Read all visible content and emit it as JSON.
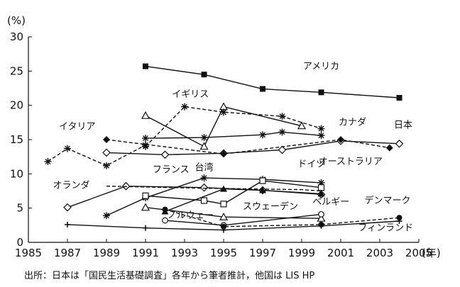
{
  "chart_data": {
    "type": "line",
    "yunit": "(%)",
    "xunit": "(年)",
    "xlim": [
      1985,
      2005
    ],
    "ylim": [
      0,
      30
    ],
    "xticks": [
      1985,
      1987,
      1989,
      1991,
      1993,
      1995,
      1997,
      1999,
      2001,
      2003,
      2005
    ],
    "yticks": [
      0,
      5,
      10,
      15,
      20,
      25,
      30
    ],
    "grid": false,
    "legend": "inline labels",
    "source": "出所：日本は「国民生活基礎調査」各年から筆者推計，他国は LIS HP",
    "series": [
      {
        "name": "アメリカ",
        "marker": "filled-square",
        "dash": "solid",
        "x": [
          1991,
          1994,
          1997,
          2000,
          2004
        ],
        "y": [
          25.7,
          24.5,
          22.4,
          21.9,
          21.1
        ],
        "label_at": [
          2000,
          25.3
        ]
      },
      {
        "name": "イギリス",
        "marker": "triangle-open",
        "dash": "solid",
        "x": [
          1991,
          1994,
          1995,
          1999
        ],
        "y": [
          18.5,
          14.0,
          19.8,
          17.0
        ],
        "label_at": [
          1993.3,
          21.2
        ]
      },
      {
        "name": "イギリス",
        "marker": "asterisk",
        "dash": "dashed",
        "x": [
          1991,
          1993,
          1995,
          1998,
          2000
        ],
        "y": [
          14.0,
          19.8,
          19.0,
          18.4,
          16.6
        ],
        "label_at": null
      },
      {
        "name": "カナダ",
        "marker": "asterisk",
        "dash": "solid",
        "x": [
          1991,
          1994,
          1997,
          1998,
          2000
        ],
        "y": [
          15.2,
          15.3,
          15.7,
          16.1,
          15.6
        ],
        "label_at": [
          2001.6,
          17.1
        ]
      },
      {
        "name": "イタリア",
        "marker": "asterisk",
        "dash": "dashed",
        "x": [
          1986,
          1987,
          1989,
          1991
        ],
        "y": [
          11.8,
          13.7,
          11.2,
          14.2
        ],
        "label_at": [
          1987.5,
          16.5
        ]
      },
      {
        "name": "日本",
        "marker": "diamond-open",
        "dash": "solid",
        "x": [
          1989,
          1992,
          1995,
          1998,
          2001,
          2004
        ],
        "y": [
          13.1,
          12.8,
          13.0,
          13.5,
          14.8,
          14.4
        ],
        "label_at": [
          2004.2,
          16.7
        ]
      },
      {
        "name": "オーストラリア",
        "marker": "diamond-filled",
        "dash": "dashed",
        "x": [
          1989,
          1995,
          2001,
          2003.5
        ],
        "y": [
          15.0,
          12.9,
          15.0,
          13.8
        ],
        "label_at": [
          2001.5,
          11.4
        ]
      },
      {
        "name": "フランス",
        "marker": "diamond-open",
        "dash": "solid",
        "x": [
          1987,
          1990,
          1994,
          1997,
          2000
        ],
        "y": [
          5.1,
          8.2,
          8.0,
          7.6,
          7.0
        ],
        "label_at": [
          1992.3,
          10.2
        ]
      },
      {
        "name": "オランダ",
        "marker": "none",
        "dash": "dashed",
        "x": [
          1989,
          1994,
          1999,
          2000
        ],
        "y": [
          8.2,
          7.9,
          7.7,
          7.5
        ],
        "label_at": [
          1987.2,
          7.9
        ]
      },
      {
        "name": "台湾",
        "marker": "asterisk",
        "dash": "solid",
        "x": [
          1989,
          1991,
          1994,
          1997,
          2000
        ],
        "y": [
          3.9,
          6.5,
          9.4,
          9.2,
          8.7
        ],
        "label_at": [
          1994,
          10.5
        ]
      },
      {
        "name": "ドイツ",
        "marker": "open-square",
        "dash": "solid",
        "x": [
          1991,
          1994,
          1995,
          1997,
          2000
        ],
        "y": [
          6.8,
          6.1,
          5.6,
          9.0,
          8.0
        ],
        "label_at": [
          1999.5,
          11.0
        ]
      },
      {
        "name": "ベルギー",
        "marker": "filled-triangle",
        "dash": "solid",
        "x": [
          1992,
          1995,
          1997,
          2000
        ],
        "y": [
          4.5,
          7.8,
          7.6,
          7.1
        ],
        "label_at": [
          2000.5,
          5.5
        ]
      },
      {
        "name": "スウェーデン",
        "marker": "triangle-open",
        "dash": "solid",
        "x": [
          1991,
          1995,
          2000
        ],
        "y": [
          5.1,
          3.7,
          3.5
        ],
        "label_at": [
          1997.4,
          4.8
        ]
      },
      {
        "name": "ノルウェー",
        "marker": "circle-open",
        "dash": "solid",
        "x": [
          1992,
          1995,
          2000
        ],
        "y": [
          3.2,
          2.5,
          4.1
        ],
        "label_at": [
          1993.3,
          3.5
        ]
      },
      {
        "name": "デンマーク",
        "marker": "circle-filled",
        "dash": "dashed",
        "x": [
          1992,
          1995,
          2000,
          2004
        ],
        "y": [
          4.8,
          2.3,
          2.6,
          3.6
        ],
        "label_at": [
          2003.4,
          5.7
        ]
      },
      {
        "name": "フィンランド",
        "marker": "plus",
        "dash": "solid",
        "x": [
          1987,
          1991,
          1995,
          2000,
          2004
        ],
        "y": [
          2.6,
          2.1,
          1.8,
          2.4,
          3.1
        ],
        "label_at": [
          2003.3,
          1.7
        ]
      }
    ]
  }
}
